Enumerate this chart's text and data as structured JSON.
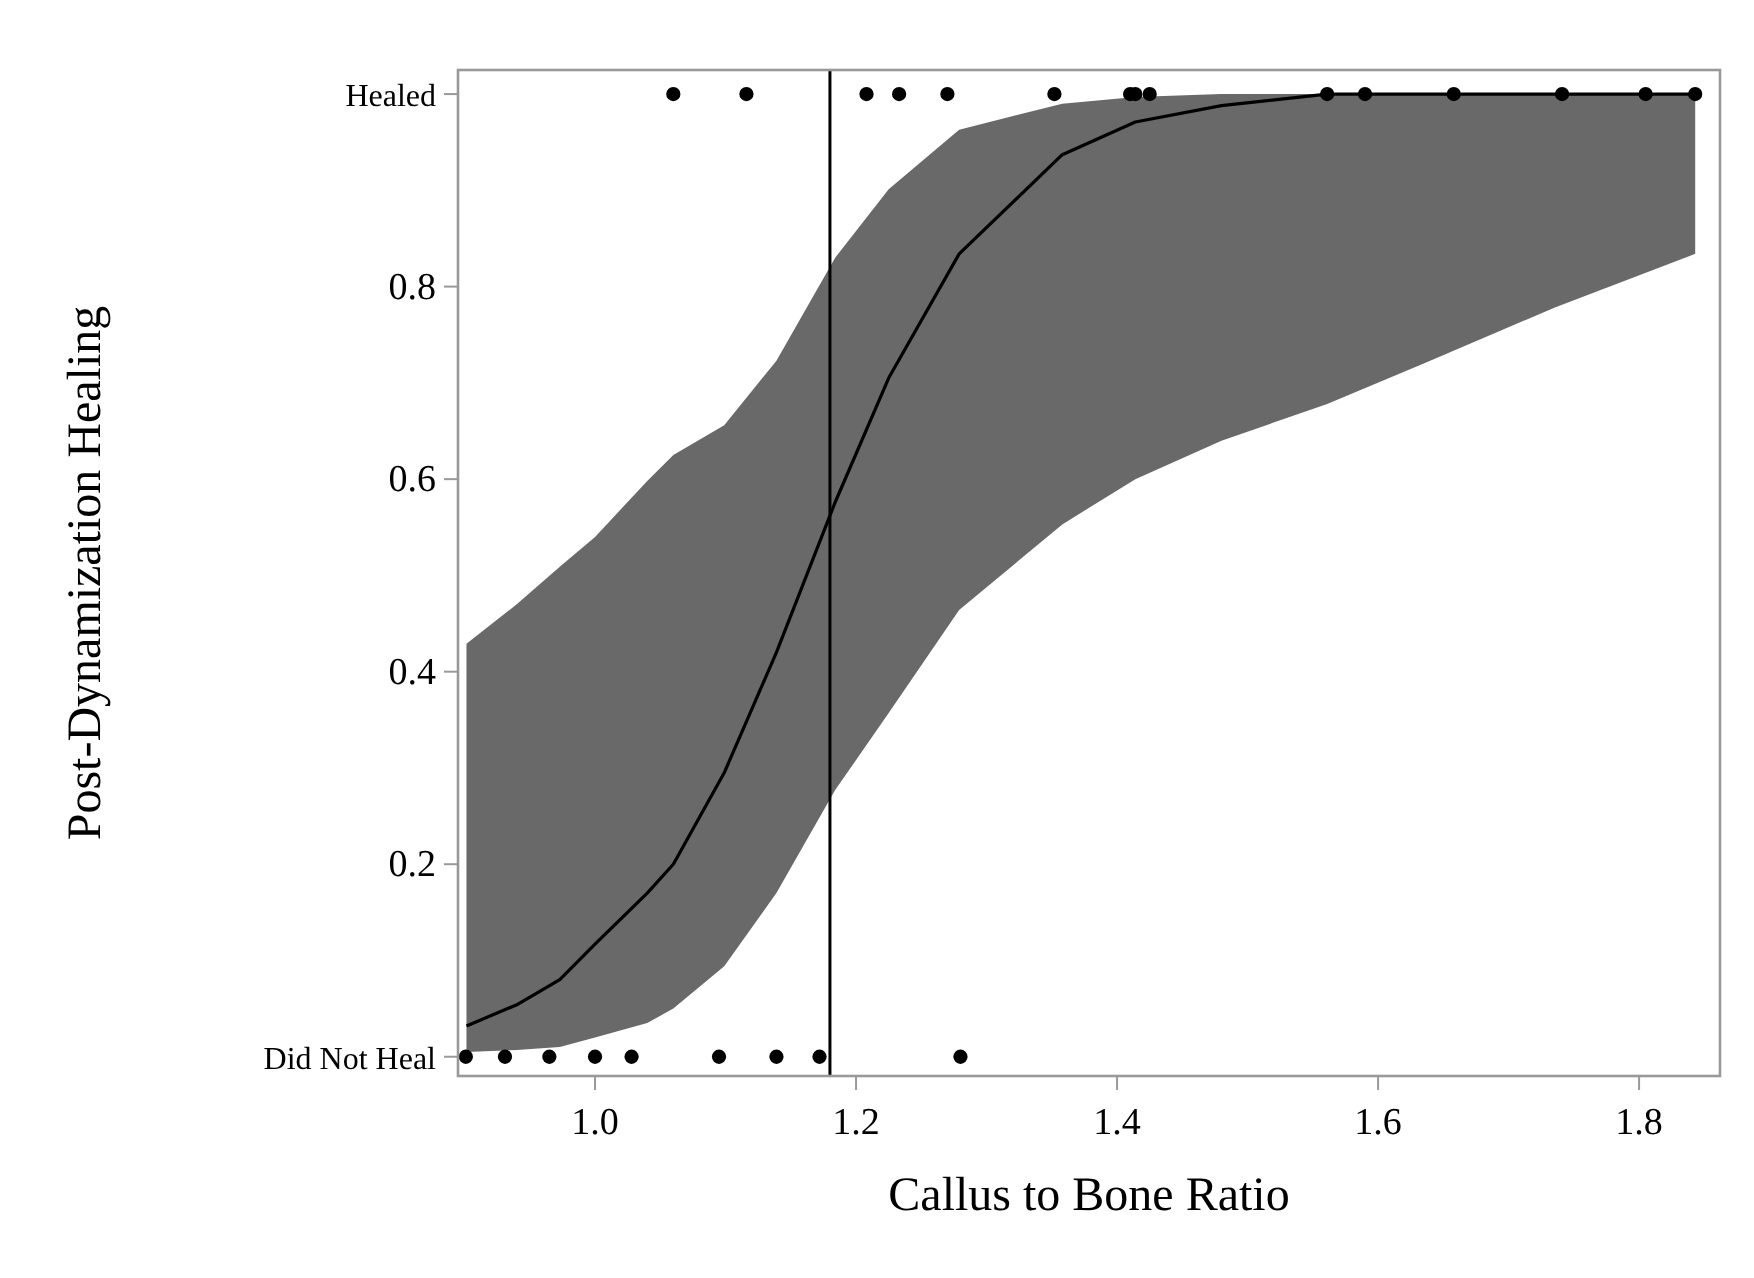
{
  "chart_data": {
    "type": "scatter",
    "xlabel": "Callus to Bone Ratio",
    "ylabel": "Post-Dynamization Healing",
    "xlim": [
      0.895,
      1.862
    ],
    "xticks": [
      {
        "value": 1,
        "label": "1.0"
      },
      1.2,
      1.4,
      1.6,
      1.8
    ],
    "ylim": [
      -0.02,
      1.025
    ],
    "yticks": [
      {
        "value": 0,
        "label": "Did Not Heal"
      },
      0.2,
      0.4,
      0.6,
      0.8,
      {
        "value": 1,
        "label": "Healed"
      }
    ],
    "grid": false,
    "series": [
      {
        "type": "line",
        "color": "#000000",
        "x": [
          0.9015,
          0.94,
          0.973,
          1.0,
          1.04,
          1.06,
          1.099,
          1.139,
          1.184,
          1.225,
          1.279,
          1.358,
          1.414,
          1.48,
          1.561,
          1.635,
          1.735,
          1.843
        ],
        "values": [
          0.032,
          0.054,
          0.08,
          0.117,
          0.17,
          0.2,
          0.295,
          0.42,
          0.576,
          0.705,
          0.834,
          0.937,
          0.971,
          0.988,
          1.0,
          1.0,
          1.0,
          1.0
        ],
        "upper": [
          0.429,
          0.47,
          0.509,
          0.54,
          0.598,
          0.625,
          0.656,
          0.723,
          0.83,
          0.901,
          0.963,
          0.99,
          0.997,
          1.0,
          1.0,
          1.0,
          1.0,
          1.0
        ],
        "lower": [
          0.005,
          0.007,
          0.01,
          0.02,
          0.035,
          0.05,
          0.094,
          0.17,
          0.277,
          0.357,
          0.464,
          0.553,
          0.6,
          0.64,
          0.678,
          0.72,
          0.778,
          0.834
        ]
      },
      {
        "marker": "circle",
        "color": "#000000",
        "x": [
          0.901,
          0.931,
          0.965,
          1.0,
          1.028,
          1.095,
          1.139,
          1.172,
          1.28,
          1.06,
          1.116,
          1.208,
          1.233,
          1.27,
          1.352,
          1.41,
          1.414,
          1.425,
          1.561,
          1.59,
          1.658,
          1.741,
          1.805,
          1.843
        ],
        "values": [
          0,
          0,
          0,
          0,
          0,
          0,
          0,
          0,
          0,
          1,
          1,
          1,
          1,
          1,
          1,
          1,
          1,
          1,
          1,
          1,
          1,
          1,
          1,
          1
        ]
      }
    ],
    "ref_lines": [
      {
        "axis": "x",
        "value": 1.18,
        "color": "#000000"
      }
    ]
  }
}
